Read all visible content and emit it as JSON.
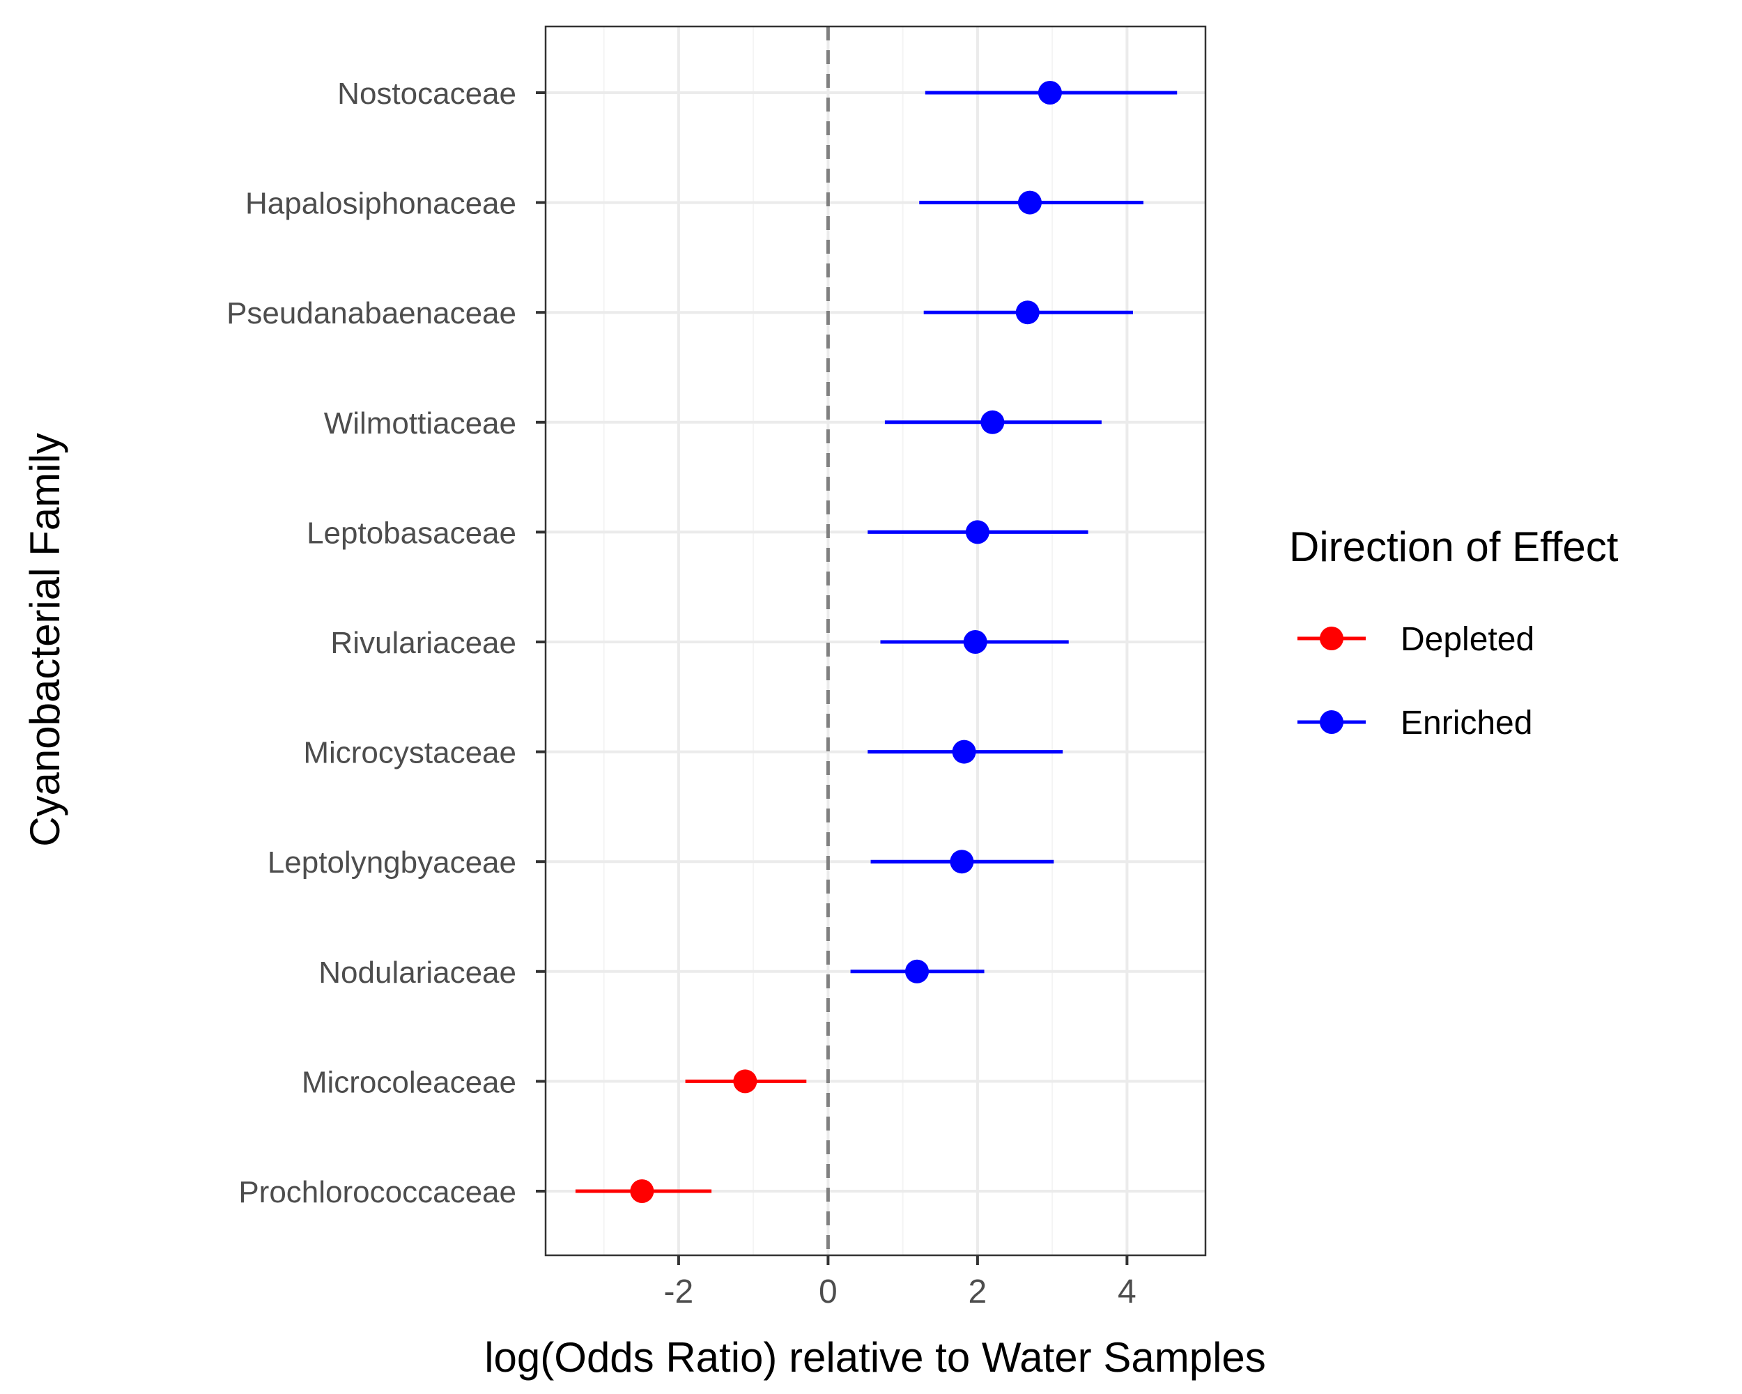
{
  "colors": {
    "depleted": "#ff0000",
    "enriched": "#0000ff",
    "grid_major": "#ebebeb",
    "grid_minor": "#f4f4f4",
    "reference_line": "#808080",
    "panel_border": "#333333",
    "tick_text": "#4d4d4d"
  },
  "chart_data": {
    "type": "forest",
    "title": "",
    "xlabel": "log(Odds Ratio) relative to Water Samples",
    "ylabel": "Cyanobacterial Family",
    "xlim": [
      -3.78,
      5.05
    ],
    "x_ticks": [
      -2,
      0,
      2,
      4
    ],
    "x_tick_labels": [
      "-2",
      "0",
      "2",
      "4"
    ],
    "reference_line": {
      "x": 0,
      "style": "dashed"
    },
    "grid": true,
    "legend": {
      "title": "Direction of Effect",
      "placement": "right",
      "entries": [
        {
          "label": "Depleted",
          "color_key": "depleted"
        },
        {
          "label": "Enriched",
          "color_key": "enriched"
        }
      ]
    },
    "rows": [
      {
        "family": "Nostocaceae",
        "estimate": 2.97,
        "lower": 1.3,
        "upper": 4.67,
        "direction": "Enriched"
      },
      {
        "family": "Hapalosiphonaceae",
        "estimate": 2.7,
        "lower": 1.22,
        "upper": 4.22,
        "direction": "Enriched"
      },
      {
        "family": "Pseudanabaenaceae",
        "estimate": 2.67,
        "lower": 1.28,
        "upper": 4.08,
        "direction": "Enriched"
      },
      {
        "family": "Wilmottiaceae",
        "estimate": 2.2,
        "lower": 0.76,
        "upper": 3.66,
        "direction": "Enriched"
      },
      {
        "family": "Leptobasaceae",
        "estimate": 2.0,
        "lower": 0.53,
        "upper": 3.48,
        "direction": "Enriched"
      },
      {
        "family": "Rivulariaceae",
        "estimate": 1.97,
        "lower": 0.7,
        "upper": 3.22,
        "direction": "Enriched"
      },
      {
        "family": "Microcystaceae",
        "estimate": 1.82,
        "lower": 0.53,
        "upper": 3.14,
        "direction": "Enriched"
      },
      {
        "family": "Leptolyngbyaceae",
        "estimate": 1.79,
        "lower": 0.57,
        "upper": 3.02,
        "direction": "Enriched"
      },
      {
        "family": "Nodulariaceae",
        "estimate": 1.19,
        "lower": 0.3,
        "upper": 2.09,
        "direction": "Enriched"
      },
      {
        "family": "Microcoleaceae",
        "estimate": -1.11,
        "lower": -1.91,
        "upper": -0.29,
        "direction": "Depleted"
      },
      {
        "family": "Prochlorococcaceae",
        "estimate": -2.49,
        "lower": -3.38,
        "upper": -1.56,
        "direction": "Depleted"
      }
    ]
  }
}
